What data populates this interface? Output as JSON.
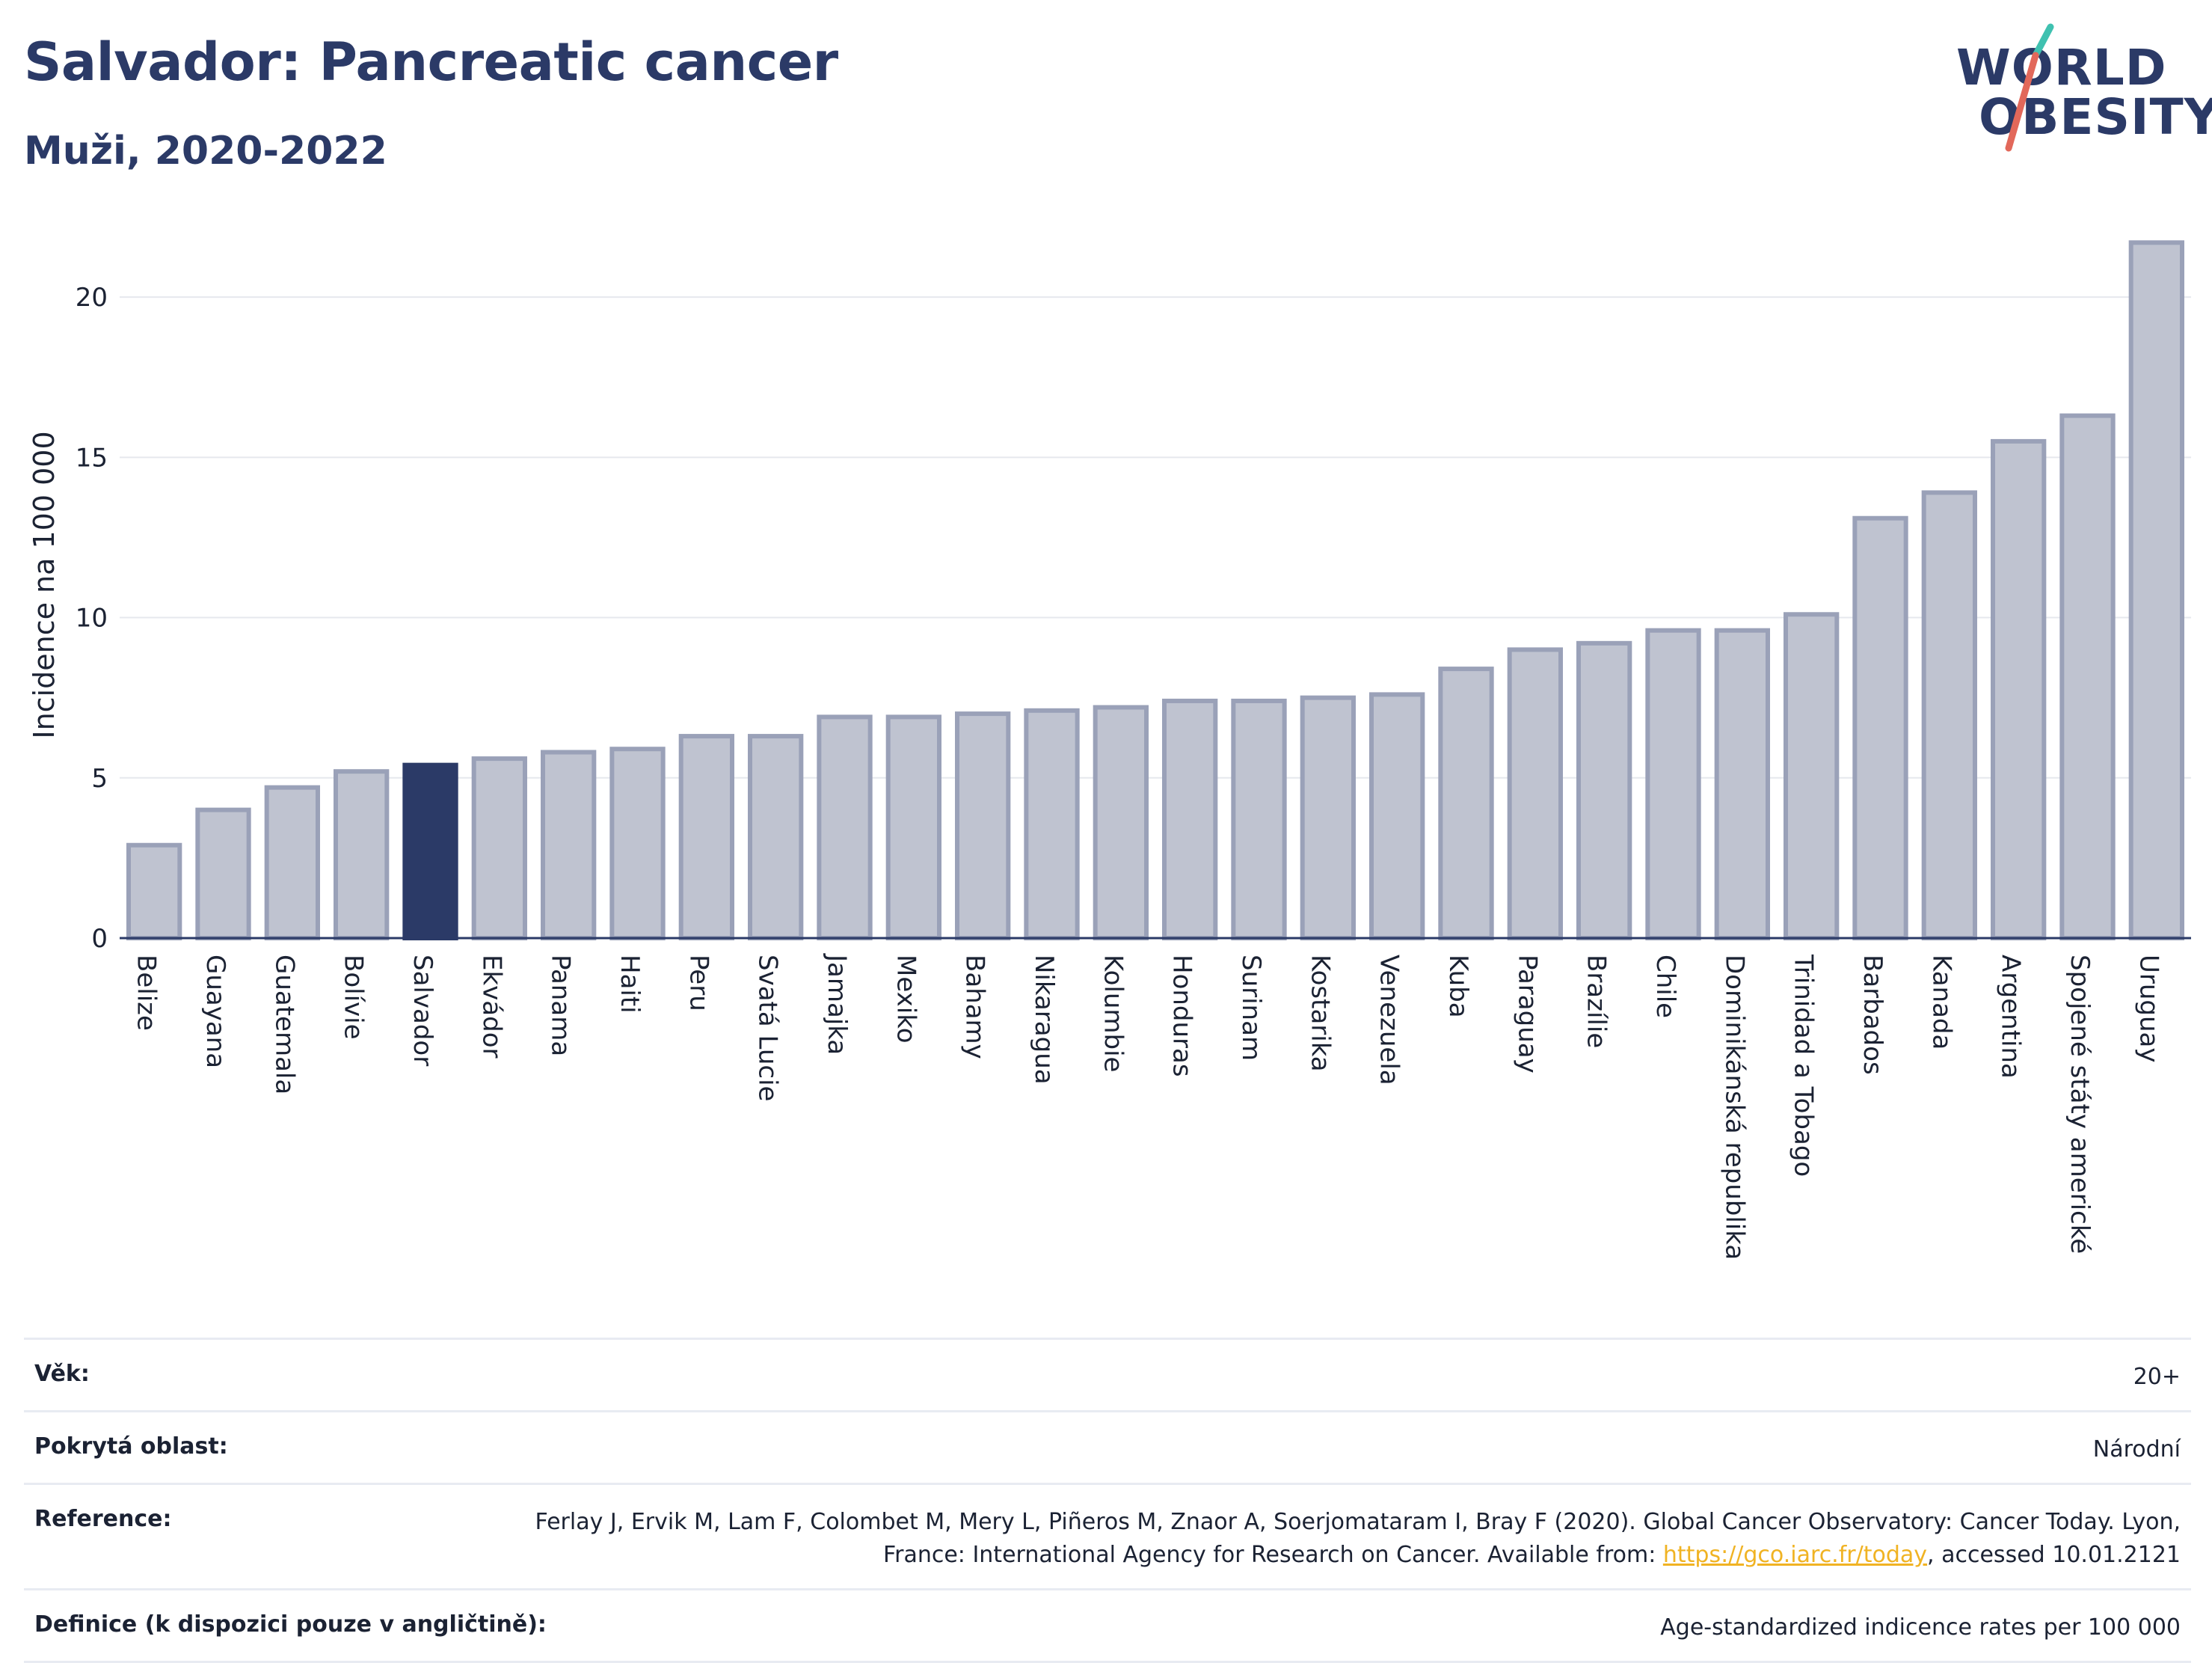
{
  "header": {
    "title": "Salvador: Pancreatic cancer",
    "subtitle": "Muži, 2020-2022"
  },
  "logo": {
    "line1": "WORLD",
    "line2": "OBESITY"
  },
  "chart_data": {
    "type": "bar",
    "ylabel": "Incidence na 100 000",
    "ylim": [
      0,
      22.5
    ],
    "yticks": [
      0,
      5,
      10,
      15,
      20
    ],
    "grid": true,
    "highlight": "Salvador",
    "colors": {
      "bar": "#bfc3d0",
      "bar_edge": "#9aa1b8",
      "highlight": "#2b3a67"
    },
    "categories": [
      "Belize",
      "Guayana",
      "Guatemala",
      "Bolívie",
      "Salvador",
      "Ekvádor",
      "Panama",
      "Haiti",
      "Peru",
      "Svatá Lucie",
      "Jamajka",
      "Mexiko",
      "Bahamy",
      "Nikaragua",
      "Kolumbie",
      "Honduras",
      "Surinam",
      "Kostarika",
      "Venezuela",
      "Kuba",
      "Paraguay",
      "Brazílie",
      "Chile",
      "Dominikánská republika",
      "Trinidad a Tobago",
      "Barbados",
      "Kanada",
      "Argentina",
      "Spojené státy americké",
      "Uruguay"
    ],
    "values": [
      2.9,
      4.0,
      4.7,
      5.2,
      5.4,
      5.6,
      5.8,
      5.9,
      6.3,
      6.3,
      6.9,
      6.9,
      7.0,
      7.1,
      7.2,
      7.4,
      7.4,
      7.5,
      7.6,
      8.4,
      9.0,
      9.2,
      9.6,
      9.6,
      10.1,
      13.1,
      13.9,
      15.5,
      16.3,
      21.7
    ]
  },
  "meta": {
    "age_label": "Věk:",
    "age_value": "20+",
    "area_label": "Pokrytá oblast:",
    "area_value": "Národní",
    "reference_label": "Reference:",
    "reference_text": "Ferlay J, Ervik M, Lam F, Colombet M, Mery L, Piñeros M, Znaor A, Soerjomataram I, Bray F (2020). Global Cancer Observatory: Cancer Today. Lyon, France: International Agency for Research on Cancer. Available from:",
    "reference_link": "https://gco.iarc.fr/today",
    "reference_suffix": ", accessed 10.01.2121",
    "definition_label": "Definice (k dispozici pouze v angličtině):",
    "definition_value": "Age-standardized indicence rates per 100 000"
  }
}
